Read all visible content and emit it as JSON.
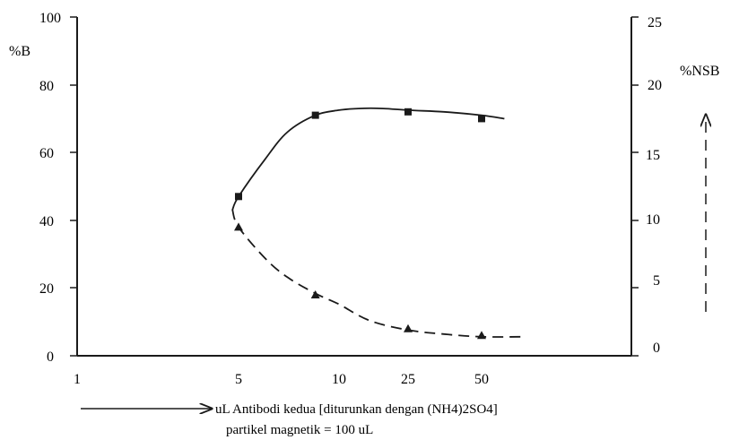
{
  "chart_data": {
    "type": "line",
    "title": "",
    "x_scale": "log",
    "x_ticks": [
      "1",
      "5",
      "10",
      "25",
      "50"
    ],
    "x_tick_values": [
      1,
      5,
      10,
      25,
      50
    ],
    "xlabel": "uL Antibodi kedua [diturunkan dengan (NH4)2SO4]",
    "xlabel_sub": "partikel magnetik = 100 uL",
    "ylabel_left": "%B",
    "ylabel_right": "%NSB",
    "ylim_left": [
      0,
      100
    ],
    "ylim_right": [
      0,
      25
    ],
    "y_ticks_left": [
      "0",
      "20",
      "40",
      "60",
      "80",
      "100"
    ],
    "y_ticks_right": [
      "0",
      "5",
      "10",
      "15",
      "20",
      "25"
    ],
    "grid": false,
    "series": [
      {
        "axis": "left",
        "marker": "square",
        "style": "solid",
        "x": [
          5,
          8.5,
          25,
          50
        ],
        "values": [
          47,
          71,
          72,
          70
        ],
        "curve_x": [
          4.7,
          5,
          6,
          7,
          8.5,
          10,
          13,
          18,
          25,
          35,
          50,
          62
        ],
        "curve_y": [
          43,
          47,
          58,
          66,
          71,
          72.5,
          73,
          73,
          72.5,
          72,
          71,
          70
        ]
      },
      {
        "axis": "right",
        "marker": "triangle",
        "style": "dashed",
        "x": [
          5,
          8.5,
          25,
          50
        ],
        "values": [
          9.5,
          4.5,
          2.0,
          1.5
        ],
        "curve_x": [
          4.7,
          5,
          6,
          7,
          8.5,
          10,
          15,
          25,
          35,
          50,
          75
        ],
        "curve_y": [
          10.8,
          9.5,
          7.2,
          5.8,
          4.6,
          3.8,
          2.6,
          1.9,
          1.6,
          1.4,
          1.4
        ]
      }
    ]
  }
}
